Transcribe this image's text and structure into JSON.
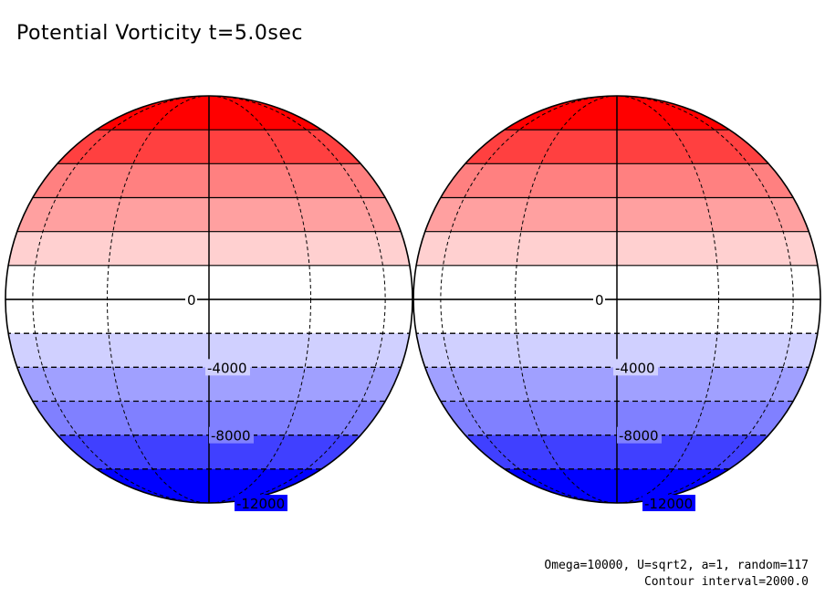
{
  "title": "Potential Vorticity t=5.0sec",
  "colors": {
    "bands_north_to_south": [
      "#ff0000",
      "#ff4040",
      "#ff8080",
      "#ffa0a0",
      "#ffd0d0",
      "#ffffff",
      "#ffffff",
      "#d0d0ff",
      "#a0a0ff",
      "#8080ff",
      "#4040ff",
      "#0000ff"
    ],
    "contour": "#000000",
    "background": "#ffffff"
  },
  "contour_labels": [
    "0",
    "-4000",
    "-8000",
    "-12000"
  ],
  "annotations": {
    "params": "Omega=10000, U=sqrt2, a=1, random=117",
    "interval": "Contour interval=2000.0"
  }
}
